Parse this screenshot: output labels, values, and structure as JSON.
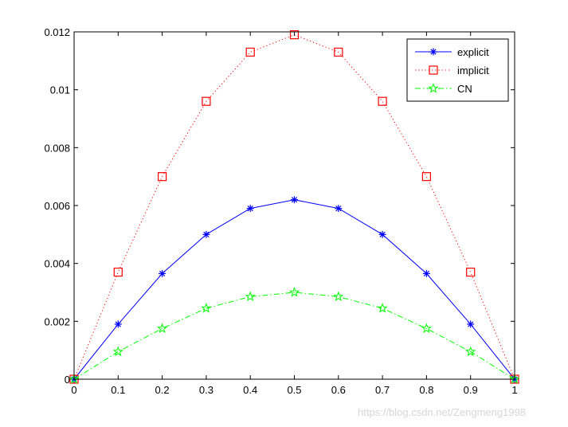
{
  "chart_data": {
    "type": "line",
    "xlim": [
      0,
      1
    ],
    "ylim": [
      0,
      0.012
    ],
    "x_ticks": [
      0,
      0.1,
      0.2,
      0.3,
      0.4,
      0.5,
      0.6,
      0.7,
      0.8,
      0.9,
      1
    ],
    "x_tick_labels": [
      "0",
      "0.1",
      "0.2",
      "0.3",
      "0.4",
      "0.5",
      "0.6",
      "0.7",
      "0.8",
      "0.9",
      "1"
    ],
    "y_ticks": [
      0,
      0.002,
      0.004,
      0.006,
      0.008,
      0.01,
      0.012
    ],
    "y_tick_labels": [
      "0",
      "0.002",
      "0.004",
      "0.006",
      "0.008",
      "0.01",
      "0.012"
    ],
    "grid": false,
    "legend_position": "top-right",
    "x": [
      0,
      0.1,
      0.2,
      0.3,
      0.4,
      0.5,
      0.6,
      0.7,
      0.8,
      0.9,
      1
    ],
    "series": [
      {
        "name": "explicit",
        "color": "#0000ff",
        "line_style": "solid",
        "marker": "asterisk",
        "values": [
          0,
          0.0019,
          0.00365,
          0.005,
          0.0059,
          0.0062,
          0.0059,
          0.005,
          0.00365,
          0.0019,
          0
        ]
      },
      {
        "name": "implicit",
        "color": "#ff0000",
        "line_style": "dotted",
        "marker": "square",
        "values": [
          0,
          0.0037,
          0.007,
          0.0096,
          0.0113,
          0.0119,
          0.0113,
          0.0096,
          0.007,
          0.0037,
          0
        ]
      },
      {
        "name": "CN",
        "color": "#00ff00",
        "line_style": "dashdot",
        "marker": "pentagram",
        "values": [
          0,
          0.00095,
          0.00175,
          0.00245,
          0.00285,
          0.003,
          0.00285,
          0.00245,
          0.00175,
          0.00095,
          0
        ]
      }
    ]
  },
  "watermark": "https://blog.csdn.net/Zengmeng1998"
}
